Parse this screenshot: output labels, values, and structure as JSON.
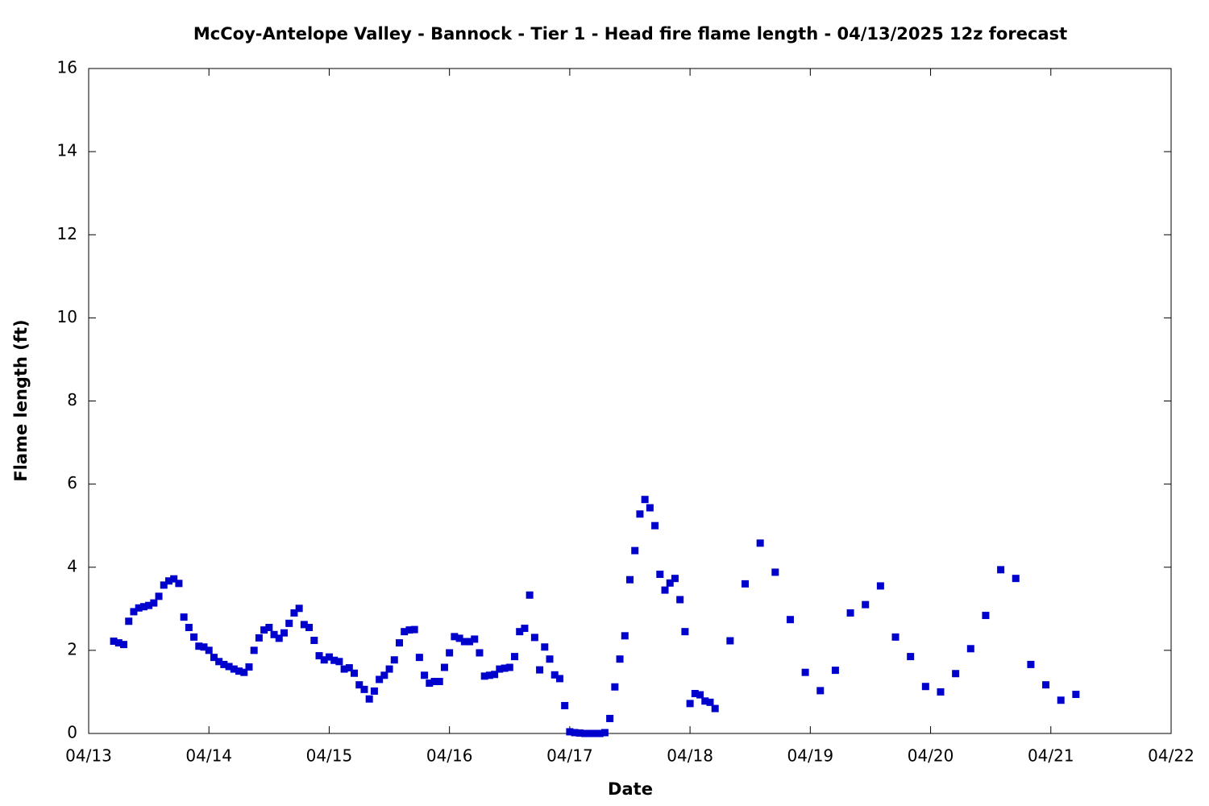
{
  "chart_data": {
    "type": "scatter",
    "title": "McCoy-Antelope Valley - Bannock - Tier 1 - Head fire flame length - 04/13/2025 12z forecast",
    "x_label": "Date",
    "y_label": "Flame length (ft)",
    "color": "#0000cc",
    "x": [
      5,
      6,
      7,
      8,
      9,
      10,
      11,
      12,
      13,
      14,
      15,
      16,
      17,
      18,
      19,
      20,
      21,
      22,
      23,
      24,
      25,
      26,
      27,
      28,
      29,
      30,
      31,
      32,
      33,
      34,
      35,
      36,
      37,
      38,
      39,
      40,
      41,
      42,
      43,
      44,
      45,
      46,
      47,
      48,
      49,
      50,
      51,
      52,
      53,
      54,
      55,
      56,
      57,
      58,
      59,
      60,
      61,
      62,
      63,
      64,
      65,
      66,
      67,
      68,
      69,
      70,
      71,
      72,
      73,
      74,
      75,
      76,
      77,
      78,
      79,
      80,
      81,
      82,
      83,
      84,
      85,
      86,
      87,
      88,
      89,
      90,
      91,
      92,
      93,
      94,
      95,
      96,
      97,
      98,
      99,
      100,
      101,
      102,
      103,
      104,
      105,
      106,
      107,
      108,
      109,
      110,
      111,
      112,
      113,
      114,
      115,
      116,
      117,
      118,
      119,
      120,
      121,
      122,
      123,
      124,
      125,
      128,
      131,
      134,
      137,
      140,
      143,
      146,
      149,
      152,
      155,
      158,
      161,
      164,
      167,
      170,
      173,
      176,
      179,
      182,
      185,
      188,
      191,
      194,
      197
    ],
    "values": [
      2.22,
      2.18,
      2.14,
      2.7,
      2.93,
      3.02,
      3.05,
      3.08,
      3.14,
      3.3,
      3.57,
      3.67,
      3.72,
      3.61,
      2.8,
      2.55,
      2.32,
      2.1,
      2.08,
      2.0,
      1.83,
      1.73,
      1.66,
      1.61,
      1.55,
      1.5,
      1.47,
      1.6,
      2.0,
      2.3,
      2.49,
      2.55,
      2.38,
      2.29,
      2.42,
      2.65,
      2.9,
      3.01,
      2.62,
      2.55,
      2.24,
      1.87,
      1.77,
      1.84,
      1.76,
      1.73,
      1.55,
      1.58,
      1.45,
      1.17,
      1.06,
      0.83,
      1.02,
      1.3,
      1.4,
      1.55,
      1.77,
      2.18,
      2.45,
      2.49,
      2.5,
      1.83,
      1.4,
      1.21,
      1.25,
      1.25,
      1.59,
      1.94,
      2.33,
      2.29,
      2.21,
      2.21,
      2.27,
      1.94,
      1.38,
      1.4,
      1.42,
      1.55,
      1.57,
      1.59,
      1.85,
      2.45,
      2.53,
      3.33,
      2.31,
      1.53,
      2.08,
      1.79,
      1.41,
      1.32,
      0.67,
      0.04,
      0.02,
      0.01,
      0.0,
      0.0,
      0.0,
      0.0,
      0.02,
      0.36,
      1.12,
      1.79,
      2.35,
      3.7,
      4.4,
      5.28,
      5.63,
      5.43,
      5.0,
      3.83,
      3.45,
      3.62,
      3.73,
      3.22,
      2.45,
      0.72,
      0.96,
      0.93,
      0.78,
      0.75,
      0.6,
      2.23,
      3.6,
      4.58,
      3.88,
      2.74,
      1.47,
      1.03,
      1.52,
      2.9,
      3.1,
      3.55,
      2.32,
      1.85,
      1.13,
      1.0,
      1.44,
      2.04,
      2.84,
      3.94,
      3.73,
      1.66,
      1.17,
      0.8,
      0.94
    ],
    "xlim": [
      0,
      216
    ],
    "xticks": [
      {
        "value": 0,
        "label": "04/13"
      },
      {
        "value": 24,
        "label": "04/14"
      },
      {
        "value": 48,
        "label": "04/15"
      },
      {
        "value": 72,
        "label": "04/16"
      },
      {
        "value": 96,
        "label": "04/17"
      },
      {
        "value": 120,
        "label": "04/18"
      },
      {
        "value": 144,
        "label": "04/19"
      },
      {
        "value": 168,
        "label": "04/20"
      },
      {
        "value": 192,
        "label": "04/21"
      },
      {
        "value": 216,
        "label": "04/22"
      }
    ],
    "ylim": [
      0,
      16
    ],
    "yticks": [
      0,
      2,
      4,
      6,
      8,
      10,
      12,
      14,
      16
    ],
    "grid": false
  }
}
